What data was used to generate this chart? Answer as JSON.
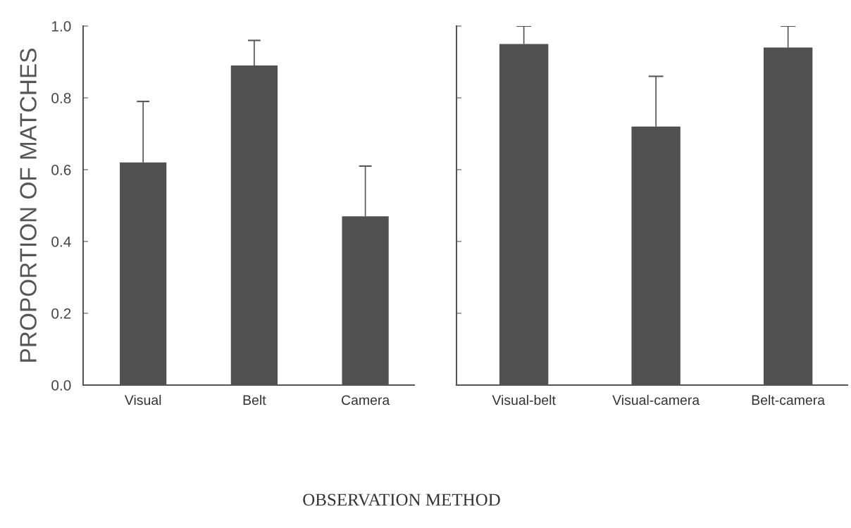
{
  "chart_data": [
    {
      "type": "bar",
      "ylabel": "PROPORTION OF MATCHES",
      "xlabel": "OBSERVATION METHOD",
      "categories": [
        "Visual",
        "Belt",
        "Camera"
      ],
      "values": [
        0.62,
        0.89,
        0.47
      ],
      "errors": [
        [
          0.62,
          0.79
        ],
        [
          0.89,
          0.96
        ],
        [
          0.47,
          0.61
        ]
      ],
      "color": "#505050",
      "ylim": [
        0,
        1
      ],
      "yticks": [
        {
          "value": 0,
          "label": "0.0"
        },
        0.2,
        0.4,
        0.6,
        0.8,
        {
          "value": 1,
          "label": "1.0"
        }
      ],
      "grid": false
    },
    {
      "type": "bar",
      "categories": [
        "Visual-belt",
        "Visual-camera",
        "Belt-camera"
      ],
      "values": [
        0.95,
        0.72,
        0.94
      ],
      "errors": [
        [
          0.95,
          1.0
        ],
        [
          0.72,
          0.86
        ],
        [
          0.94,
          1.0
        ]
      ],
      "color": "#505050",
      "ylim": [
        0,
        1
      ],
      "yticks": [
        {
          "value": 0,
          "label": null
        },
        {
          "value": 0.2,
          "label": null
        },
        {
          "value": 0.4,
          "label": null
        },
        {
          "value": 0.6,
          "label": null
        },
        {
          "value": 0.8,
          "label": null
        },
        {
          "value": 1,
          "label": null
        }
      ],
      "tick_labels": "x",
      "grid": false
    }
  ]
}
